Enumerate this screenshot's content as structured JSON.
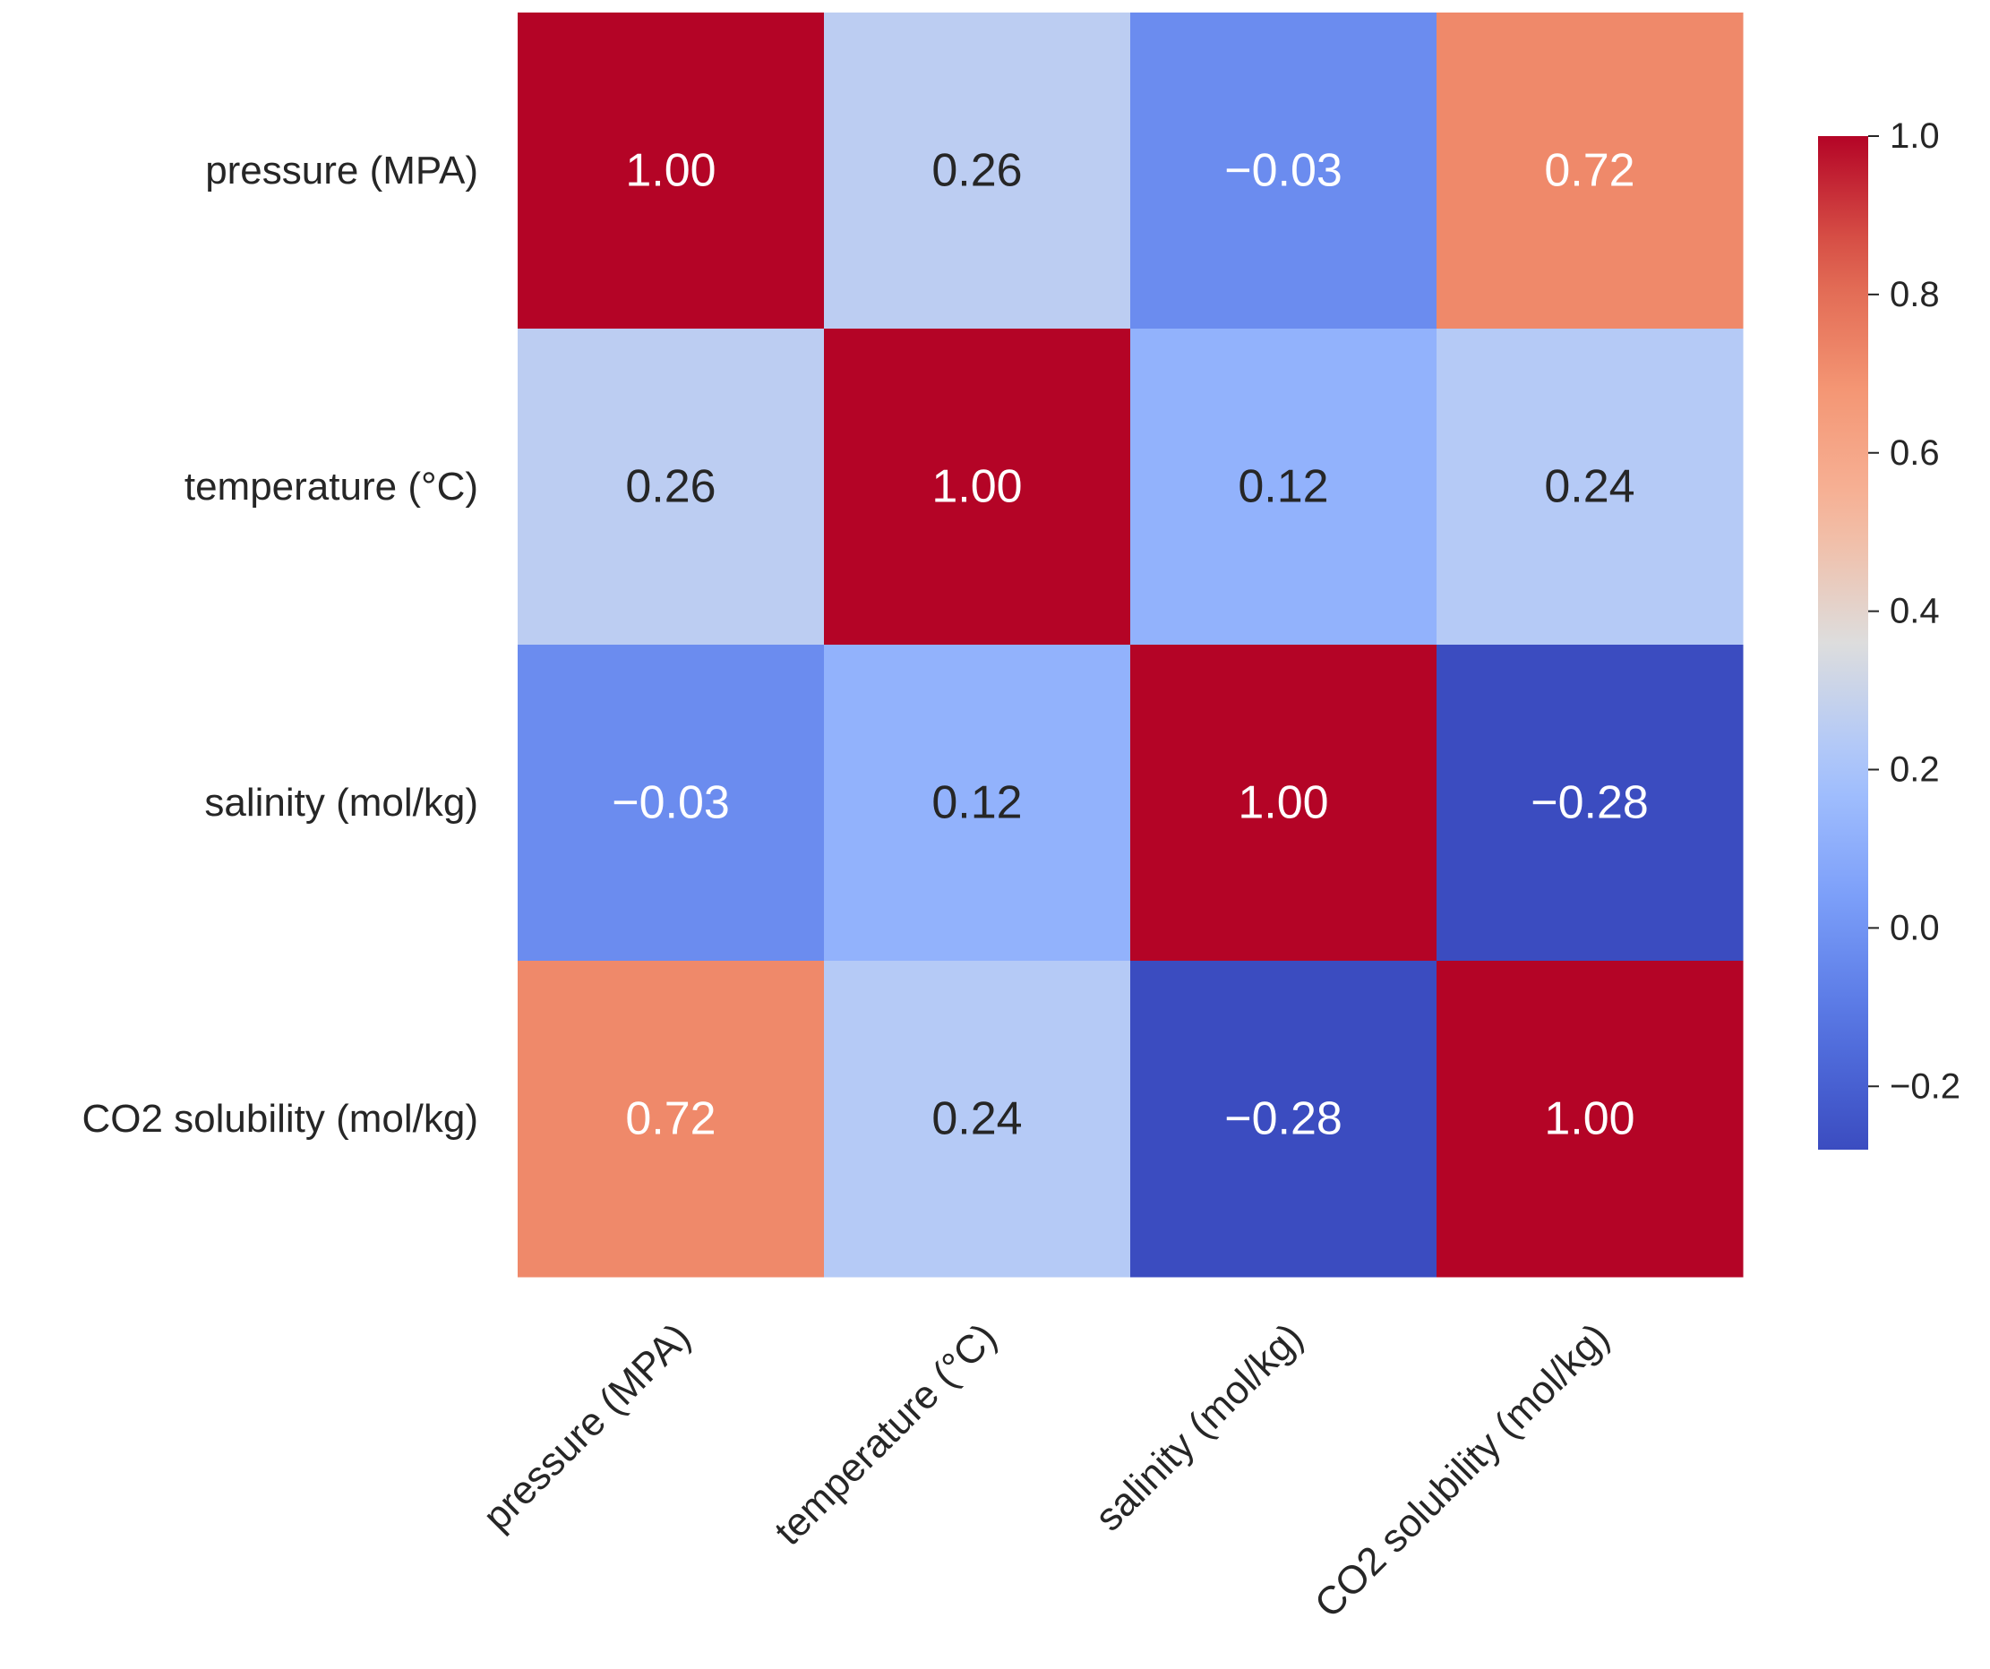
{
  "chart_data": {
    "type": "heatmap",
    "title": "",
    "row_labels": [
      "pressure (MPA)",
      "temperature (°C)",
      "salinity (mol/kg)",
      "CO2 solubility (mol/kg)"
    ],
    "col_labels": [
      "pressure (MPA)",
      "temperature (°C)",
      "salinity (mol/kg)",
      "CO2 solubility (mol/kg)"
    ],
    "values": [
      [
        1.0,
        0.26,
        -0.03,
        0.72
      ],
      [
        0.26,
        1.0,
        0.12,
        0.24
      ],
      [
        -0.03,
        0.12,
        1.0,
        -0.28
      ],
      [
        0.72,
        0.24,
        -0.28,
        1.0
      ]
    ],
    "cell_labels": [
      [
        "1.00",
        "0.26",
        "−0.03",
        "0.72"
      ],
      [
        "0.26",
        "1.00",
        "0.12",
        "0.24"
      ],
      [
        "−0.03",
        "0.12",
        "1.00",
        "−0.28"
      ],
      [
        "0.72",
        "0.24",
        "−0.28",
        "1.00"
      ]
    ],
    "colormap": "coolwarm",
    "vmin": -0.28,
    "vmax": 1.0,
    "colorbar": {
      "ticks": [
        1.0,
        0.8,
        0.6,
        0.4,
        0.2,
        0.0,
        -0.2
      ],
      "tick_labels": [
        "1.0",
        "0.8",
        "0.6",
        "0.4",
        "0.2",
        "0.0",
        "−0.2"
      ],
      "placement": "right"
    },
    "annotation_colors": {
      "dark": "#262626",
      "light": "#ffffff"
    }
  }
}
